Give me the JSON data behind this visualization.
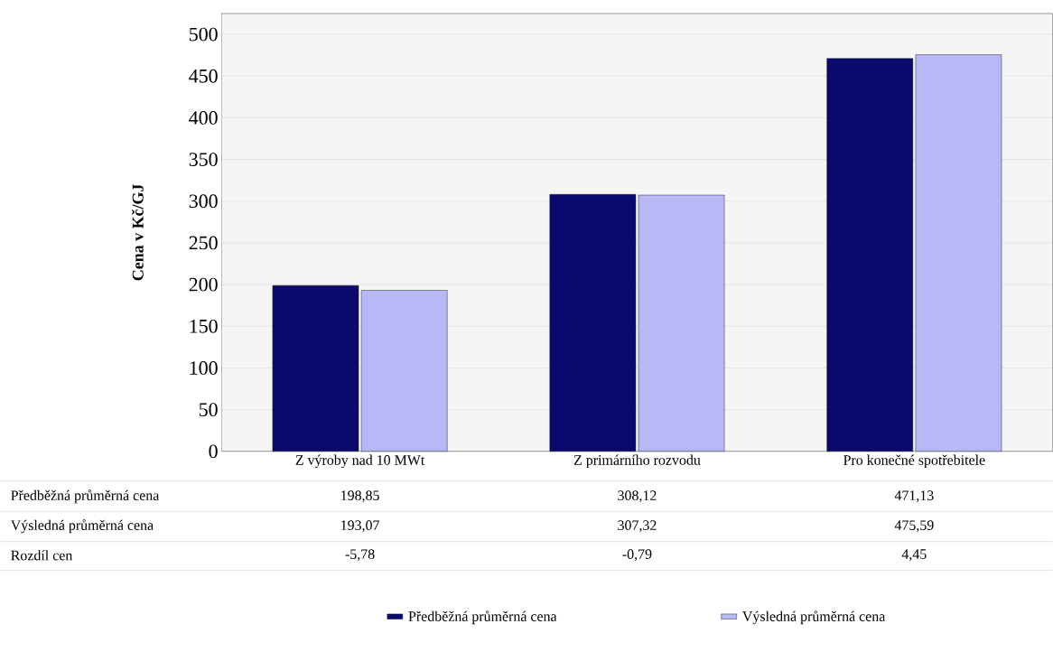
{
  "chart_data": {
    "type": "bar",
    "ylabel": "Cena v Kč/GJ",
    "categories": [
      "Z výroby nad 10 MWt",
      "Z primárního rozvodu",
      "Pro konečné spotřebitele"
    ],
    "series": [
      {
        "name": "Předběžná průměrná cena",
        "color": "#0a0a6e",
        "values": [
          198.85,
          308.12,
          471.13
        ],
        "value_labels": [
          "198,85",
          "308,12",
          "471,13"
        ]
      },
      {
        "name": "Výsledná průměrná cena",
        "color": "#b8b8f6",
        "values": [
          193.07,
          307.32,
          475.59
        ],
        "value_labels": [
          "193,07",
          "307,32",
          "475,59"
        ]
      }
    ],
    "annotations": [
      "Rozdíl cen",
      "-5,78",
      "-0,79",
      "4,45"
    ],
    "ylim": [
      0,
      525
    ],
    "yticks": [
      0,
      50,
      100,
      150,
      200,
      250,
      300,
      350,
      400,
      450,
      500
    ],
    "grid": "y",
    "legend": "bottom"
  }
}
